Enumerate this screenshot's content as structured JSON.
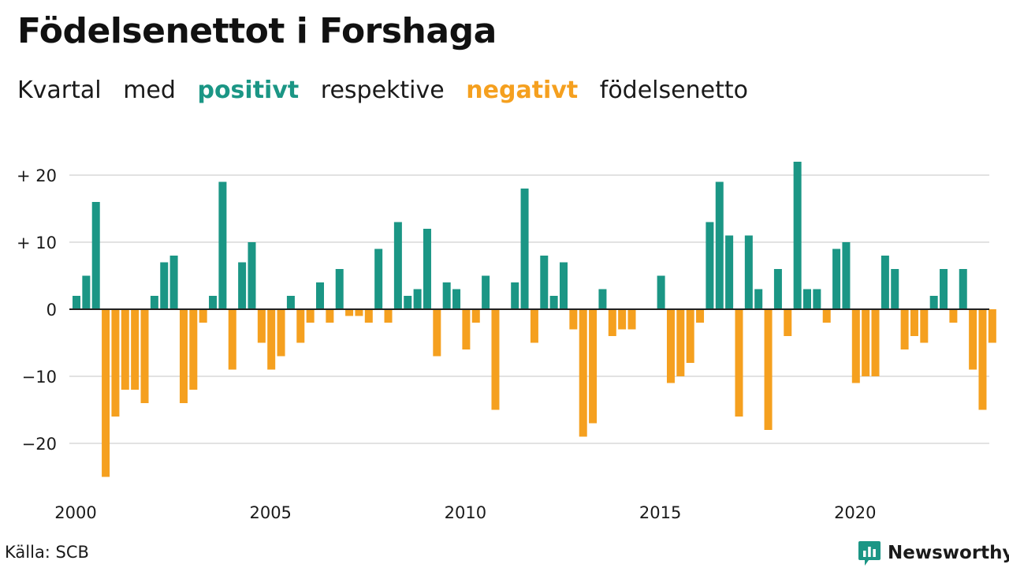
{
  "header": {
    "title": "Födelsenettot i Forshaga",
    "subtitle": {
      "part1": "Kvartal",
      "part2": "med",
      "positive_word": "positivt",
      "part3": "respektive",
      "negative_word": "negativt",
      "part4": "födelsenetto"
    }
  },
  "footer": {
    "source": "Källa: SCB",
    "brand": "Newsworthy",
    "brand_icon": "bar-chart-logo-icon"
  },
  "colors": {
    "positive": "#1b9685",
    "negative": "#f5a01f",
    "grid": "#e2e2e2",
    "zero_line": "#222222"
  },
  "chart_data": {
    "type": "bar",
    "x_start": "2000 Q1",
    "x_tick_labels": [
      "2000",
      "2005",
      "2010",
      "2015",
      "2020"
    ],
    "y_tick_labels": [
      "+ 20",
      "+ 10",
      "0",
      "−10",
      "−20"
    ],
    "y_ticks": [
      20,
      10,
      0,
      -10,
      -20
    ],
    "ylim": [
      -27,
      23
    ],
    "grid": true,
    "values": [
      2,
      5,
      16,
      -25,
      -16,
      -12,
      -12,
      -14,
      2,
      7,
      8,
      -14,
      -12,
      -2,
      2,
      19,
      -9,
      7,
      10,
      -5,
      -9,
      -7,
      2,
      -5,
      -2,
      4,
      -2,
      6,
      -1,
      -1,
      -2,
      9,
      -2,
      13,
      2,
      3,
      12,
      -7,
      4,
      3,
      -6,
      -2,
      5,
      -15,
      0,
      4,
      18,
      -5,
      8,
      2,
      7,
      -3,
      -19,
      -17,
      3,
      -4,
      -3,
      -3,
      0,
      0,
      5,
      -11,
      -10,
      -8,
      -2,
      13,
      19,
      11,
      -16,
      11,
      3,
      -18,
      6,
      -4,
      22,
      3,
      3,
      -2,
      9,
      10,
      -11,
      -10,
      -10,
      8,
      6,
      -6,
      -4,
      -5,
      2,
      6,
      -2,
      6,
      -9,
      -15,
      -5
    ]
  }
}
